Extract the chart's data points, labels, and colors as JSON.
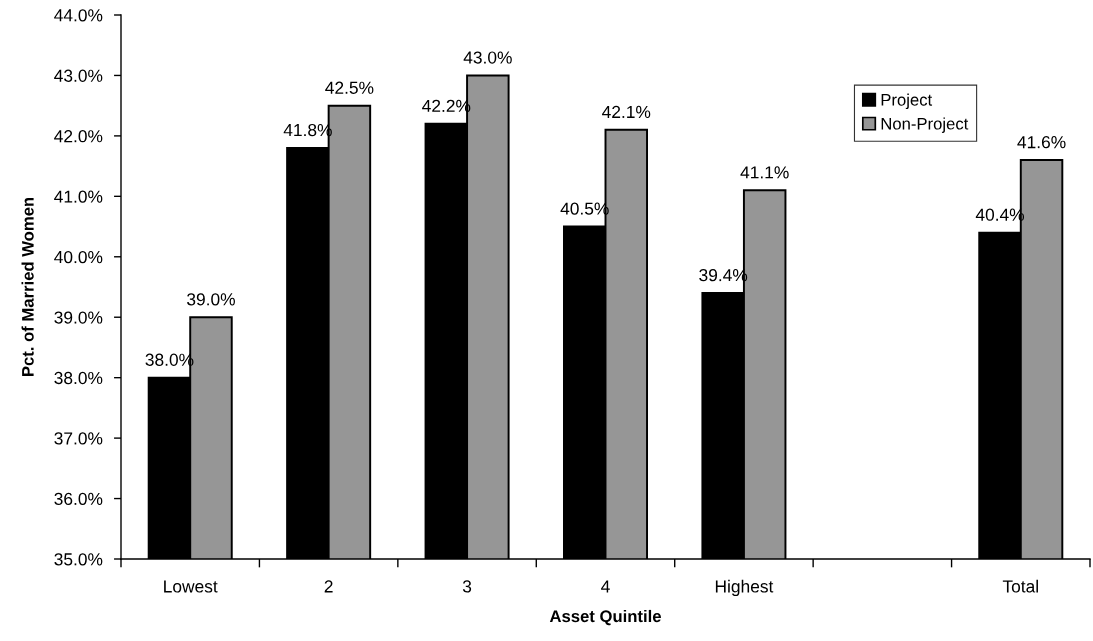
{
  "chart_data": {
    "type": "bar",
    "xlabel": "Asset Quintile",
    "ylabel": "Pct. of Married Women",
    "categories": [
      "Lowest",
      "2",
      "3",
      "4",
      "Highest",
      null,
      "Total"
    ],
    "series": [
      {
        "name": "Project",
        "color": "#000000",
        "values": [
          38.0,
          41.8,
          42.2,
          40.5,
          39.4,
          null,
          40.4
        ],
        "value_labels": [
          "38.0%",
          "41.8%",
          "42.2%",
          "40.5%",
          "39.4%",
          null,
          "40.4%"
        ]
      },
      {
        "name": "Non-Project",
        "color": "#969696",
        "values": [
          39.0,
          42.5,
          43.0,
          42.1,
          41.1,
          null,
          41.6
        ],
        "value_labels": [
          "39.0%",
          "42.5%",
          "43.0%",
          "42.1%",
          "41.1%",
          null,
          "41.6%"
        ]
      }
    ],
    "ylim": [
      35,
      44
    ],
    "yticks": [
      {
        "value": 35,
        "label": "35.0%"
      },
      {
        "value": 36,
        "label": "36.0%"
      },
      {
        "value": 37,
        "label": "37.0%"
      },
      {
        "value": 38,
        "label": "38.0%"
      },
      {
        "value": 39,
        "label": "39.0%"
      },
      {
        "value": 40,
        "label": "40.0%"
      },
      {
        "value": 41,
        "label": "41.0%"
      },
      {
        "value": 42,
        "label": "42.0%"
      },
      {
        "value": 43,
        "label": "43.0%"
      },
      {
        "value": 44,
        "label": "44.0%"
      }
    ],
    "legend": "top right"
  }
}
